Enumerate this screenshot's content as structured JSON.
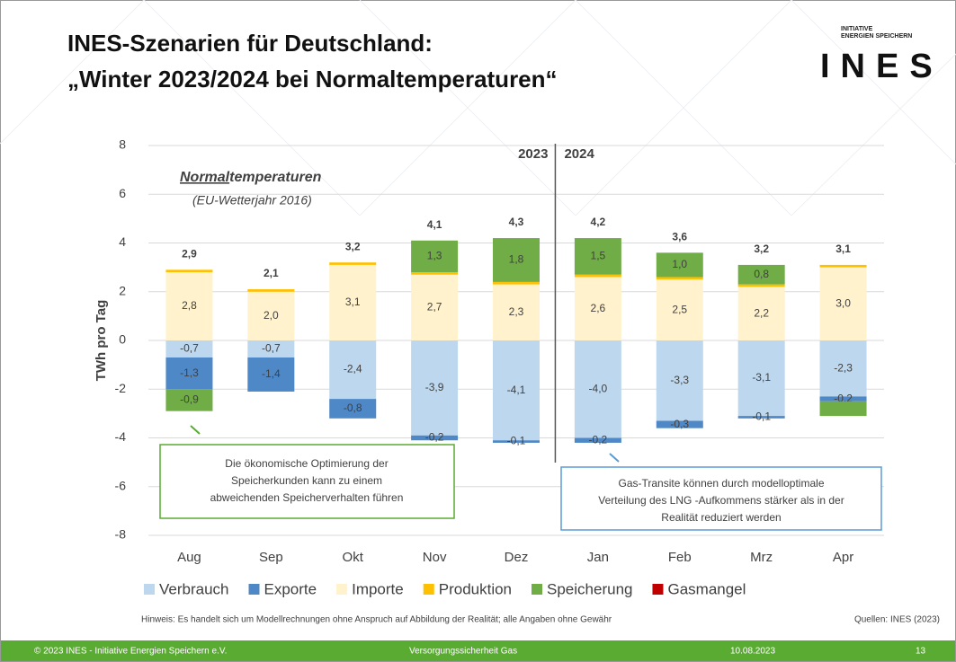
{
  "header": {
    "title_line1": "INES-Szenarien für Deutschland:",
    "title_line2": "„Winter 2023/2024 bei Normaltemperaturen“",
    "logo_small_1": "INITIATIVE",
    "logo_small_2": "ENERGIEN SPEICHERN",
    "logo": "INES"
  },
  "chart_data": {
    "type": "stacked_bar",
    "ylabel": "TWh pro Tag",
    "categories": [
      "Aug",
      "Sep",
      "Okt",
      "Nov",
      "Dez",
      "Jan",
      "Feb",
      "Mrz",
      "Apr"
    ],
    "series": [
      {
        "name": "Verbrauch",
        "color": "#bdd7ee",
        "values": [
          -0.7,
          -0.7,
          -2.4,
          -3.9,
          -4.1,
          -4.0,
          -3.3,
          -3.1,
          -2.3
        ],
        "value_labels": [
          "-0,7",
          "-0,7",
          "-2,4",
          "-3,9",
          "-4,1",
          "-4,0",
          "-3,3",
          "-3,1",
          "-2,3"
        ]
      },
      {
        "name": "Exporte",
        "color": "#4f88c6",
        "values": [
          -1.3,
          -1.4,
          -0.8,
          -0.2,
          -0.1,
          -0.2,
          -0.3,
          -0.1,
          -0.2
        ],
        "value_labels": [
          "-1,3",
          "-1,4",
          "-0,8",
          "-0,2",
          "-0,1",
          "-0,2",
          "-0,3",
          "-0,1",
          "-0,2"
        ]
      },
      {
        "name": "Importe",
        "color": "#fff2cc",
        "values": [
          2.8,
          2.0,
          3.1,
          2.7,
          2.3,
          2.6,
          2.5,
          2.2,
          3.0
        ],
        "value_labels": [
          "2,8",
          "2,0",
          "3,1",
          "2,7",
          "2,3",
          "2,6",
          "2,5",
          "2,2",
          "3,0"
        ]
      },
      {
        "name": "Produktion",
        "color": "#ffc000",
        "values": [
          0.1,
          0.1,
          0.1,
          0.1,
          0.1,
          0.1,
          0.1,
          0.1,
          0.1
        ]
      },
      {
        "name": "Speicherung",
        "color": "#70ad47",
        "values": [
          -0.9,
          null,
          null,
          1.3,
          1.8,
          1.5,
          1.0,
          0.8,
          -0.6
        ],
        "value_labels": [
          "-0,9",
          null,
          null,
          "1,3",
          "1,8",
          "1,5",
          "1,0",
          "0,8",
          null
        ]
      },
      {
        "name": "Gasmangel",
        "color": "#c00000",
        "values": [
          0,
          0,
          0,
          0,
          0,
          0,
          0,
          0,
          0
        ]
      }
    ],
    "totals": {
      "values": [
        2.9,
        2.1,
        3.2,
        4.1,
        4.3,
        4.2,
        3.6,
        3.2,
        3.1
      ],
      "value_labels": [
        "2,9",
        "2,1",
        "3,2",
        "4,1",
        "4,3",
        "4,2",
        "3,6",
        "3,2",
        "3,1"
      ]
    },
    "ylim": [
      -8,
      8
    ],
    "yticks": [
      -8,
      -6,
      -4,
      -2,
      0,
      2,
      4,
      6,
      8
    ],
    "grid": true,
    "year_left": "2023",
    "year_right": "2024",
    "annotation_bold": "Normal",
    "annotation_rest": "temperaturen",
    "annotation_sub": "(EU-Wetterjahr 2016)",
    "callout_left": [
      "Die ökonomische Optimierung der",
      "Speicherkunden kann zu einem",
      "abweichenden Speicherverhalten führen"
    ],
    "callout_right": [
      "Gas-Transite können durch modelloptimale",
      "Verteilung des LNG -Aufkommens stärker als in der",
      "Realität reduziert werden"
    ]
  },
  "footer": {
    "note": "Hinweis: Es handelt sich um Modellrechnungen ohne Anspruch auf Abbildung der Realität; alle Angaben ohne Gewähr",
    "source": "Quellen: INES (2023)",
    "copyright": "© 2023 INES  - Initiative Energien Speichern e.V.",
    "topic": "Versorgungssicherheit Gas",
    "date": "10.08.2023",
    "page": "13"
  }
}
